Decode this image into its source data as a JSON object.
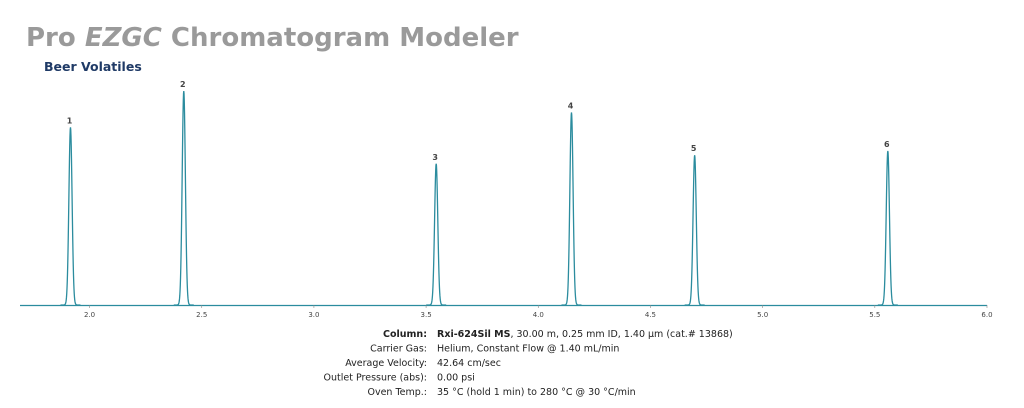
{
  "header": {
    "title_parts": [
      "Pro",
      "EZGC",
      "Chromatogram Modeler"
    ]
  },
  "chart_data": {
    "type": "chromatogram",
    "title": "Beer Volatiles",
    "x": [
      1.915,
      2.42,
      3.545,
      4.148,
      4.697,
      5.558
    ],
    "values": [
      83,
      100,
      66,
      90,
      70,
      72
    ],
    "peak_labels": [
      "1",
      "2",
      "3",
      "4",
      "5",
      "6"
    ],
    "color": "#2b8c9e",
    "xlim": [
      1.69,
      6.0
    ],
    "xticks": [
      {
        "value": 2,
        "label": "2.0"
      },
      {
        "value": 2.5,
        "label": "2.5"
      },
      {
        "value": 3,
        "label": "3.0"
      },
      {
        "value": 3.5,
        "label": "3.5"
      },
      {
        "value": 4,
        "label": "4.0"
      },
      {
        "value": 4.5,
        "label": "4.5"
      },
      {
        "value": 5,
        "label": "5.0"
      },
      {
        "value": 5.5,
        "label": "5.5"
      },
      {
        "value": 6,
        "label": "6.0"
      }
    ],
    "ylim": [
      0,
      100
    ]
  },
  "column_info": {
    "rows": [
      {
        "label": "Column:",
        "value_bold": "Rxi-624Sil MS",
        "value": ", 30.00 m, 0.25 mm ID, 1.40 µm (cat.# 13868)"
      },
      {
        "label": "Carrier Gas:",
        "value": "Helium, Constant Flow @ 1.40 mL/min"
      },
      {
        "label": "Average Velocity:",
        "value": "42.64 cm/sec"
      },
      {
        "label": "Outlet Pressure (abs):",
        "value": "0.00 psi"
      },
      {
        "label": "Oven Temp.:",
        "value": "35 °C (hold 1 min) to 280 °C @ 30 °C/min"
      }
    ]
  }
}
